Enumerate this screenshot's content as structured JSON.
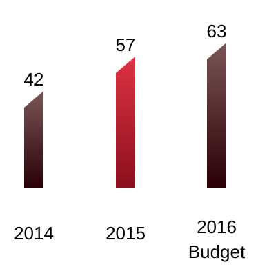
{
  "chart_data": {
    "type": "bar",
    "categories": [
      [
        "2014"
      ],
      [
        "2015"
      ],
      [
        "2016",
        "Budget"
      ]
    ],
    "values": [
      42,
      57,
      63
    ],
    "data_labels": [
      "42",
      "57",
      "63"
    ],
    "ylim": [
      0,
      63
    ],
    "grid": false,
    "legend": "none",
    "colors": {
      "bar_2014": "#7a5656",
      "bar_2015": "#cc2233",
      "bar_2016": "#7a5656",
      "bar_dark": "#2a0006"
    }
  }
}
